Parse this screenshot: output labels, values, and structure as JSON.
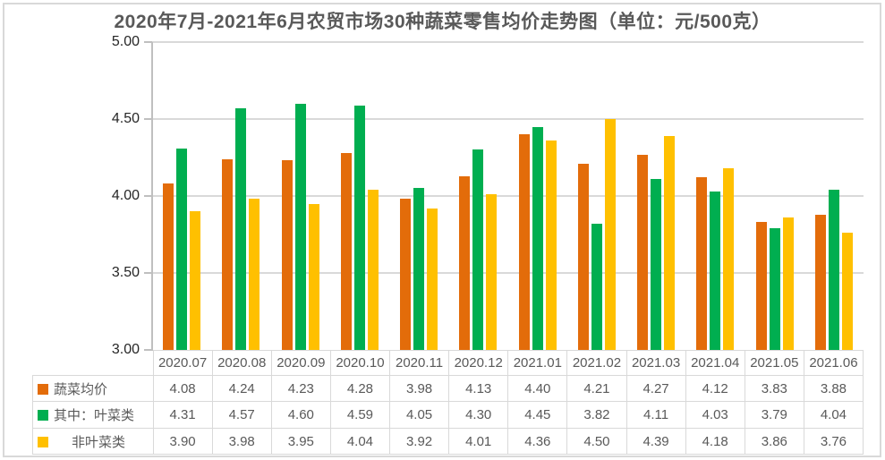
{
  "chart_data": {
    "type": "bar",
    "title": "2020年7月-2021年6月农贸市场30种蔬菜零售均价走势图（单位：元/500克）",
    "categories": [
      "2020.07",
      "2020.08",
      "2020.09",
      "2020.10",
      "2020.11",
      "2020.12",
      "2021.01",
      "2021.02",
      "2021.03",
      "2021.04",
      "2021.05",
      "2021.06"
    ],
    "series": [
      {
        "name": "蔬菜均价",
        "color": "#E36C0A",
        "values": [
          4.08,
          4.24,
          4.23,
          4.28,
          3.98,
          4.13,
          4.4,
          4.21,
          4.27,
          4.12,
          3.83,
          3.88
        ]
      },
      {
        "name": "其中：叶菜类",
        "color": "#00AE50",
        "values": [
          4.31,
          4.57,
          4.6,
          4.59,
          4.05,
          4.3,
          4.45,
          3.82,
          4.11,
          4.03,
          3.79,
          4.04
        ]
      },
      {
        "name": "非叶菜类",
        "color": "#FFC000",
        "values": [
          3.9,
          3.98,
          3.95,
          4.04,
          3.92,
          4.01,
          4.36,
          4.5,
          4.39,
          4.18,
          3.86,
          3.76
        ]
      }
    ],
    "ylim": [
      3.0,
      5.0
    ],
    "yticks": [
      5.0,
      4.5,
      4.0,
      3.5,
      3.0
    ],
    "ytick_format": "0.00",
    "value_format": "0.00",
    "grid": true,
    "legend_position": "data-table-left",
    "xlabel": "",
    "ylabel": ""
  },
  "style_colors": {
    "gridline": "#D9D9D9",
    "axis": "#BFBFBF",
    "table_border": "#D9D9D9",
    "title_text": "#595959",
    "table_text": "#595959",
    "axis_label_text": "#262626"
  }
}
